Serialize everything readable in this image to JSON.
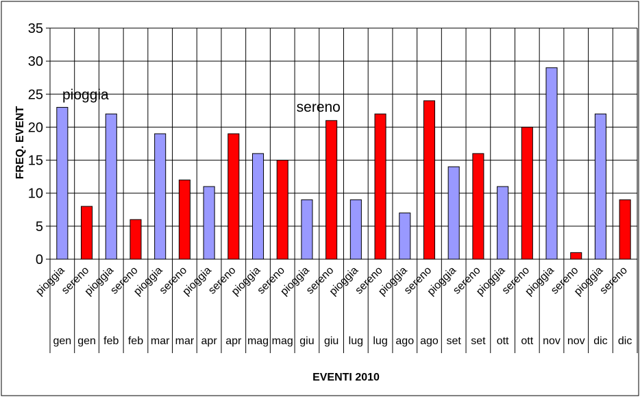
{
  "chart_data": {
    "type": "bar",
    "xlabel": "EVENTI 2010",
    "ylabel": "FREQ. EVENT",
    "ylim": [
      0,
      35
    ],
    "yticks": [
      0,
      5,
      10,
      15,
      20,
      25,
      30,
      35
    ],
    "grid": "vertical category dividers",
    "legend": "none",
    "colors": {
      "pioggia": "#9999FF",
      "sereno": "#FF0000"
    },
    "categories": [
      {
        "label": "pioggia",
        "month": "gen",
        "value": 23,
        "kind": "pioggia"
      },
      {
        "label": "sereno",
        "month": "gen",
        "value": 8,
        "kind": "sereno"
      },
      {
        "label": "pioggia",
        "month": "feb",
        "value": 22,
        "kind": "pioggia"
      },
      {
        "label": "sereno",
        "month": "feb",
        "value": 6,
        "kind": "sereno"
      },
      {
        "label": "pioggia",
        "month": "mar",
        "value": 19,
        "kind": "pioggia"
      },
      {
        "label": "sereno",
        "month": "mar",
        "value": 12,
        "kind": "sereno"
      },
      {
        "label": "pioggia",
        "month": "apr",
        "value": 11,
        "kind": "pioggia"
      },
      {
        "label": "sereno",
        "month": "apr",
        "value": 19,
        "kind": "sereno"
      },
      {
        "label": "pioggia",
        "month": "mag",
        "value": 16,
        "kind": "pioggia"
      },
      {
        "label": "sereno",
        "month": "mag",
        "value": 15,
        "kind": "sereno"
      },
      {
        "label": "pioggia",
        "month": "giu",
        "value": 9,
        "kind": "pioggia"
      },
      {
        "label": "sereno",
        "month": "giu",
        "value": 21,
        "kind": "sereno"
      },
      {
        "label": "pioggia",
        "month": "lug",
        "value": 9,
        "kind": "pioggia"
      },
      {
        "label": "sereno",
        "month": "lug",
        "value": 22,
        "kind": "sereno"
      },
      {
        "label": "pioggia",
        "month": "ago",
        "value": 7,
        "kind": "pioggia"
      },
      {
        "label": "sereno",
        "month": "ago",
        "value": 24,
        "kind": "sereno"
      },
      {
        "label": "pioggia",
        "month": "set",
        "value": 14,
        "kind": "pioggia"
      },
      {
        "label": "sereno",
        "month": "set",
        "value": 16,
        "kind": "sereno"
      },
      {
        "label": "pioggia",
        "month": "ott",
        "value": 11,
        "kind": "pioggia"
      },
      {
        "label": "sereno",
        "month": "ott",
        "value": 20,
        "kind": "sereno"
      },
      {
        "label": "pioggia",
        "month": "nov",
        "value": 29,
        "kind": "pioggia"
      },
      {
        "label": "sereno",
        "month": "nov",
        "value": 1,
        "kind": "sereno"
      },
      {
        "label": "pioggia",
        "month": "dic",
        "value": 22,
        "kind": "pioggia"
      },
      {
        "label": "sereno",
        "month": "dic",
        "value": 9,
        "kind": "sereno"
      }
    ],
    "annotations": [
      {
        "text": "pioggia",
        "near_category": 0
      },
      {
        "text": "sereno",
        "near_category": 11
      }
    ]
  }
}
